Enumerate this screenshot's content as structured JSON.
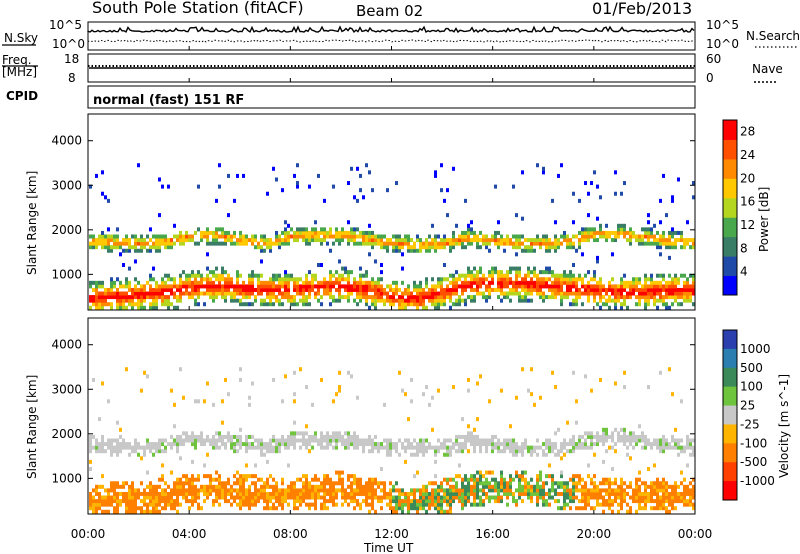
{
  "header": {
    "title": "South Pole Station (fitACF)",
    "beam": "Beam 02",
    "date": "01/Feb/2013"
  },
  "panels": {
    "nsky": {
      "label": "N.Sky",
      "right_label": "N.Search",
      "ticks_left": [
        "10^5",
        "10^0"
      ],
      "ticks_right": [
        "10^5",
        "10^0"
      ]
    },
    "freq": {
      "label_line1": "Freq.",
      "label_line2": "[MHz]",
      "right_label": "Nave",
      "ticks_left": [
        "18",
        "8"
      ],
      "ticks_right": [
        "60",
        "0"
      ]
    },
    "cpid": {
      "label": "CPID",
      "value": "normal (fast) 151 RF"
    }
  },
  "colors": {
    "power": [
      "#0000ff",
      "#1f4aa8",
      "#3a7d66",
      "#4aa84c",
      "#b5d61f",
      "#ffc800",
      "#ff8a00",
      "#ff5000",
      "#ff0000"
    ],
    "velocity": [
      "#2b3fae",
      "#2b7fb0",
      "#3a8a5a",
      "#6ec43c",
      "#c8c8c8",
      "#ffb400",
      "#ff7f00",
      "#ff4000",
      "#ff0000"
    ]
  },
  "chart_data": [
    {
      "type": "heatmap",
      "title": "",
      "xlabel": "",
      "ylabel": "Slant Range [km]",
      "x_ticks": [
        "00:00",
        "04:00",
        "08:00",
        "12:00",
        "16:00",
        "20:00",
        "00:00"
      ],
      "y_ticks": [
        1000,
        2000,
        3000,
        4000
      ],
      "ylim": [
        200,
        4600
      ],
      "colorbar": {
        "label": "Power [dB]",
        "ticks": [
          4,
          8,
          12,
          16,
          20,
          24,
          28
        ],
        "range": [
          0,
          30
        ]
      },
      "series": [
        {
          "band_center_km": [
            1750,
            1720,
            1700,
            1720,
            1860,
            1880,
            1760,
            1700,
            1850,
            1880,
            1880,
            1780,
            1700,
            1660,
            1680,
            1820,
            1760,
            1700,
            1680,
            1750,
            1900,
            1900,
            1850,
            1750,
            1720
          ],
          "peak_power_db": 22
        },
        {
          "band_center_km": [
            450,
            500,
            550,
            600,
            700,
            750,
            700,
            650,
            650,
            700,
            750,
            650,
            500,
            450,
            600,
            750,
            800,
            800,
            750,
            700,
            650,
            600,
            600,
            650,
            650
          ],
          "peak_power_db": 28
        }
      ]
    },
    {
      "type": "heatmap",
      "title": "",
      "xlabel": "Time UT",
      "ylabel": "Slant Range [km]",
      "x_ticks": [
        "00:00",
        "04:00",
        "08:00",
        "12:00",
        "16:00",
        "20:00",
        "00:00"
      ],
      "y_ticks": [
        1000,
        2000,
        3000,
        4000
      ],
      "ylim": [
        200,
        4600
      ],
      "colorbar": {
        "label": "Velocity [m s^-1]",
        "ticks": [
          "1000",
          "500",
          "100",
          "25",
          "-25",
          "-100",
          "-500",
          "-1000"
        ]
      },
      "series": [
        {
          "name": "",
          "band_center_km": [
            1750,
            1720,
            1700,
            1720,
            1860,
            1880,
            1760,
            1700,
            1850,
            1880,
            1880,
            1780,
            1700,
            1660,
            1680,
            1820,
            1760,
            1700,
            1680,
            1750,
            1900,
            1900,
            1850,
            1750,
            1720
          ]
        }
      ]
    }
  ]
}
